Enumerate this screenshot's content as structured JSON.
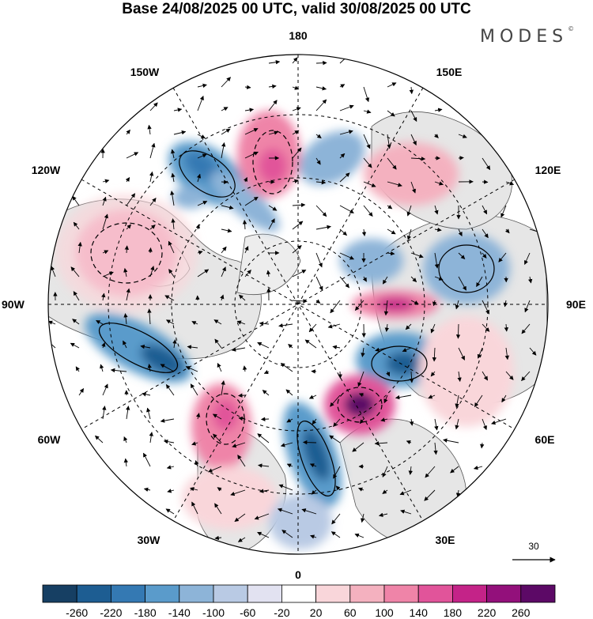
{
  "title": "Base 24/08/2025 00 UTC, valid 30/08/2025 00 UTC",
  "brand": "MODES",
  "brand_mark": "©",
  "longitude_labels": {
    "top": "180",
    "bottom": "0",
    "left": "90W",
    "right": "90E",
    "ul1": "150W",
    "ul2": "120W",
    "ur1": "150E",
    "ur2": "120E",
    "ll1": "60W",
    "ll2": "30W",
    "lr1": "60E",
    "lr2": "30E"
  },
  "vector_scale": {
    "value": "30"
  },
  "colorbar": {
    "ticks": [
      "-260",
      "-220",
      "-180",
      "-140",
      "-100",
      "-60",
      "-20",
      "20",
      "60",
      "100",
      "140",
      "180",
      "220",
      "260"
    ],
    "colors": [
      "#163f63",
      "#1d5d92",
      "#3479b3",
      "#5a9bcb",
      "#8db4d8",
      "#b9cae4",
      "#e2e2f1",
      "#ffffff",
      "#f9d6da",
      "#f4b1bf",
      "#ef84a8",
      "#e1549a",
      "#c42388",
      "#93107b",
      "#5c0966"
    ]
  },
  "anomalies": [
    {
      "name": "trough-npacific-1",
      "v": -140
    },
    {
      "name": "trough-npacific-2",
      "v": -130
    },
    {
      "name": "trough-bering",
      "v": -120
    },
    {
      "name": "trough-pacific-small",
      "v": -80
    },
    {
      "name": "ridge-alaska",
      "v": 150
    },
    {
      "name": "ridge-siberia-east",
      "v": 110
    },
    {
      "name": "ridge-canada",
      "v": 130
    },
    {
      "name": "trough-siberia",
      "v": -110
    },
    {
      "name": "trough-east-siberia",
      "v": -90
    },
    {
      "name": "ridge-central-siberia",
      "v": 150
    },
    {
      "name": "trough-west-siberia",
      "v": -160
    },
    {
      "name": "trough-hudson",
      "v": -180
    },
    {
      "name": "ridge-scandinavia",
      "v": 250
    },
    {
      "name": "ridge-north-atlantic",
      "v": 180
    },
    {
      "name": "trough-europe",
      "v": -180
    }
  ]
}
